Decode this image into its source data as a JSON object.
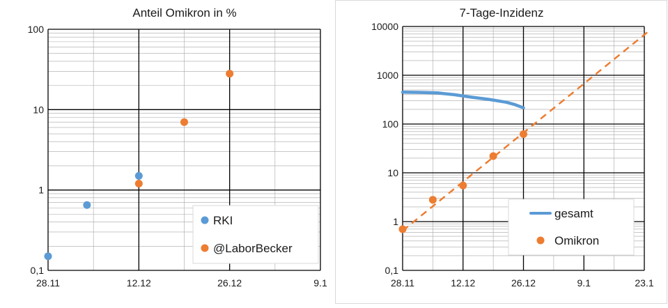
{
  "chart_data": [
    {
      "type": "scatter",
      "title": "Anteil Omikron in %",
      "xlabel": "",
      "ylabel": "",
      "x_tick_labels": [
        "28.11",
        "12.12",
        "26.12",
        "9.1"
      ],
      "x_range_days": [
        0,
        42
      ],
      "y_scale": "log",
      "y_tick_labels": [
        "0,1",
        "1",
        "10",
        "100"
      ],
      "ylim": [
        0.1,
        100
      ],
      "grid": true,
      "legend_position": "bottom-right",
      "series": [
        {
          "name": "RKI",
          "color": "#5b9bd5",
          "points": [
            {
              "x": "28.11",
              "y": 0.15
            },
            {
              "x": "4.12",
              "y": 0.65
            },
            {
              "x": "12.12",
              "y": 1.5
            }
          ]
        },
        {
          "name": "@LaborBecker",
          "color": "#ed7d31",
          "points": [
            {
              "x": "12.12",
              "y": 1.2
            },
            {
              "x": "19.12",
              "y": 7
            },
            {
              "x": "26.12",
              "y": 28
            }
          ]
        }
      ]
    },
    {
      "type": "line",
      "title": "7-Tage-Inzidenz",
      "xlabel": "",
      "ylabel": "",
      "x_tick_labels": [
        "28.11",
        "12.12",
        "26.12",
        "9.1",
        "23.1"
      ],
      "x_range_days": [
        0,
        56
      ],
      "y_scale": "log",
      "y_tick_labels": [
        "0,1",
        "1",
        "10",
        "100",
        "1000",
        "10000"
      ],
      "ylim": [
        0.1,
        10000
      ],
      "grid": true,
      "legend_position": "bottom-right",
      "series": [
        {
          "name": "gesamt",
          "color": "#5b9bd5",
          "style": "solid",
          "points": [
            {
              "x": "28.11",
              "y": 450
            },
            {
              "x": "2.12",
              "y": 445
            },
            {
              "x": "6.12",
              "y": 435
            },
            {
              "x": "10.12",
              "y": 400
            },
            {
              "x": "14.12",
              "y": 355
            },
            {
              "x": "18.12",
              "y": 320
            },
            {
              "x": "22.12",
              "y": 280
            },
            {
              "x": "24.12",
              "y": 250
            },
            {
              "x": "26.12",
              "y": 215
            }
          ]
        },
        {
          "name": "Omikron",
          "color": "#ed7d31",
          "style": "markers",
          "points": [
            {
              "x": "28.11",
              "y": 0.7
            },
            {
              "x": "5.12",
              "y": 2.8
            },
            {
              "x": "12.12",
              "y": 5.5
            },
            {
              "x": "19.12",
              "y": 22
            },
            {
              "x": "26.12",
              "y": 62
            }
          ]
        },
        {
          "name": "",
          "color": "#ed7d31",
          "style": "dashed",
          "points": [
            {
              "x": "28.11",
              "y": 0.65
            },
            {
              "x": "24.1",
              "y": 8000
            }
          ]
        }
      ]
    }
  ]
}
